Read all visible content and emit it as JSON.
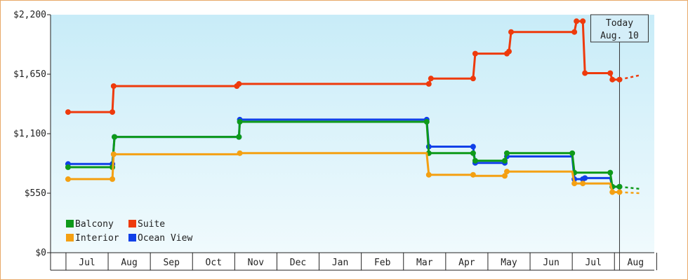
{
  "chart_data": {
    "type": "line",
    "step": true,
    "x_unit": "month index (0 = Jul, 13 = Aug of following year)",
    "months": [
      "Jul",
      "Aug",
      "Sep",
      "Oct",
      "Nov",
      "Dec",
      "Jan",
      "Feb",
      "Mar",
      "Apr",
      "May",
      "Jun",
      "Jul",
      "Aug"
    ],
    "y_ticks": [
      "$0",
      "$550",
      "$1,100",
      "$1,650",
      "$2,200"
    ],
    "ylim": [
      0,
      2200
    ],
    "grid": false,
    "legend_placement": "bottom-left",
    "today": {
      "line1": "Today",
      "line2": "Aug. 10",
      "x": 12.62
    },
    "series": [
      {
        "name": "Suite",
        "color": "#ee3a0c",
        "points": [
          [
            -0.45,
            1300
          ],
          [
            0.6,
            1300
          ],
          [
            0.63,
            1540
          ],
          [
            3.55,
            1540
          ],
          [
            3.6,
            1560
          ],
          [
            8.1,
            1560
          ],
          [
            8.15,
            1610
          ],
          [
            9.15,
            1610
          ],
          [
            9.2,
            1840
          ],
          [
            9.95,
            1840
          ],
          [
            10.0,
            1860
          ],
          [
            10.05,
            2040
          ],
          [
            11.55,
            2040
          ],
          [
            11.6,
            2140
          ],
          [
            11.75,
            2140
          ],
          [
            11.8,
            1660
          ],
          [
            12.4,
            1660
          ],
          [
            12.45,
            1600
          ],
          [
            12.62,
            1600
          ]
        ],
        "markers": [
          [
            -0.45,
            1300
          ],
          [
            0.6,
            1300
          ],
          [
            0.63,
            1540
          ],
          [
            3.55,
            1540
          ],
          [
            3.6,
            1560
          ],
          [
            8.1,
            1560
          ],
          [
            8.15,
            1610
          ],
          [
            9.15,
            1610
          ],
          [
            9.2,
            1840
          ],
          [
            9.95,
            1840
          ],
          [
            10.0,
            1860
          ],
          [
            10.05,
            2040
          ],
          [
            11.55,
            2040
          ],
          [
            11.6,
            2140
          ],
          [
            11.75,
            2140
          ],
          [
            11.8,
            1660
          ],
          [
            12.4,
            1660
          ],
          [
            12.45,
            1600
          ],
          [
            12.62,
            1600
          ]
        ],
        "projection": [
          [
            12.62,
            1600
          ],
          [
            13.1,
            1640
          ]
        ]
      },
      {
        "name": "Ocean View",
        "color": "#1040e8",
        "points": [
          [
            -0.45,
            820
          ],
          [
            0.6,
            820
          ],
          [
            0.65,
            1070
          ],
          [
            3.6,
            1070
          ],
          [
            3.62,
            1230
          ],
          [
            8.05,
            1230
          ],
          [
            8.1,
            980
          ],
          [
            9.15,
            980
          ],
          [
            9.2,
            830
          ],
          [
            9.9,
            830
          ],
          [
            9.95,
            890
          ],
          [
            11.5,
            890
          ],
          [
            11.55,
            680
          ],
          [
            11.75,
            680
          ],
          [
            11.8,
            690
          ],
          [
            12.4,
            690
          ],
          [
            12.45,
            610
          ],
          [
            12.62,
            610
          ]
        ],
        "markers": [
          [
            -0.45,
            820
          ],
          [
            0.6,
            820
          ],
          [
            0.65,
            1070
          ],
          [
            3.6,
            1070
          ],
          [
            3.62,
            1230
          ],
          [
            8.05,
            1230
          ],
          [
            8.1,
            980
          ],
          [
            9.15,
            980
          ],
          [
            9.2,
            830
          ],
          [
            9.9,
            830
          ],
          [
            9.95,
            890
          ],
          [
            11.55,
            680
          ],
          [
            11.75,
            680
          ],
          [
            11.8,
            690
          ],
          [
            12.45,
            610
          ],
          [
            12.62,
            610
          ]
        ]
      },
      {
        "name": "Balcony",
        "color": "#0e9a1a",
        "points": [
          [
            -0.45,
            790
          ],
          [
            0.6,
            790
          ],
          [
            0.65,
            1070
          ],
          [
            3.6,
            1070
          ],
          [
            3.62,
            1210
          ],
          [
            8.05,
            1210
          ],
          [
            8.1,
            920
          ],
          [
            9.15,
            920
          ],
          [
            9.2,
            850
          ],
          [
            9.9,
            850
          ],
          [
            9.95,
            920
          ],
          [
            11.5,
            920
          ],
          [
            11.55,
            740
          ],
          [
            12.4,
            740
          ],
          [
            12.45,
            610
          ],
          [
            12.62,
            610
          ]
        ],
        "markers": [
          [
            -0.45,
            790
          ],
          [
            0.6,
            790
          ],
          [
            0.65,
            1070
          ],
          [
            3.6,
            1070
          ],
          [
            3.62,
            1210
          ],
          [
            8.05,
            1210
          ],
          [
            8.1,
            920
          ],
          [
            9.15,
            920
          ],
          [
            9.2,
            850
          ],
          [
            9.9,
            850
          ],
          [
            9.95,
            920
          ],
          [
            11.5,
            920
          ],
          [
            11.55,
            740
          ],
          [
            12.4,
            740
          ],
          [
            12.45,
            610
          ],
          [
            12.62,
            610
          ]
        ],
        "projection": [
          [
            12.62,
            610
          ],
          [
            13.1,
            590
          ]
        ]
      },
      {
        "name": "Interior",
        "color": "#f4a012",
        "points": [
          [
            -0.45,
            680
          ],
          [
            0.6,
            680
          ],
          [
            0.63,
            910
          ],
          [
            3.6,
            910
          ],
          [
            3.62,
            920
          ],
          [
            8.05,
            920
          ],
          [
            8.1,
            720
          ],
          [
            9.15,
            720
          ],
          [
            9.2,
            710
          ],
          [
            9.9,
            710
          ],
          [
            9.95,
            750
          ],
          [
            11.5,
            750
          ],
          [
            11.55,
            640
          ],
          [
            12.4,
            640
          ],
          [
            12.45,
            560
          ],
          [
            12.62,
            560
          ]
        ],
        "markers": [
          [
            -0.45,
            680
          ],
          [
            0.6,
            680
          ],
          [
            0.63,
            910
          ],
          [
            3.62,
            920
          ],
          [
            8.1,
            720
          ],
          [
            9.15,
            720
          ],
          [
            9.9,
            710
          ],
          [
            9.95,
            750
          ],
          [
            11.55,
            640
          ],
          [
            11.75,
            640
          ],
          [
            12.45,
            560
          ],
          [
            12.62,
            560
          ]
        ],
        "projection": [
          [
            12.62,
            560
          ],
          [
            13.1,
            550
          ]
        ]
      }
    ],
    "legend": [
      {
        "name": "Balcony",
        "color": "#0e9a1a"
      },
      {
        "name": "Suite",
        "color": "#ee3a0c"
      },
      {
        "name": "Interior",
        "color": "#f4a012"
      },
      {
        "name": "Ocean View",
        "color": "#1040e8"
      }
    ]
  }
}
